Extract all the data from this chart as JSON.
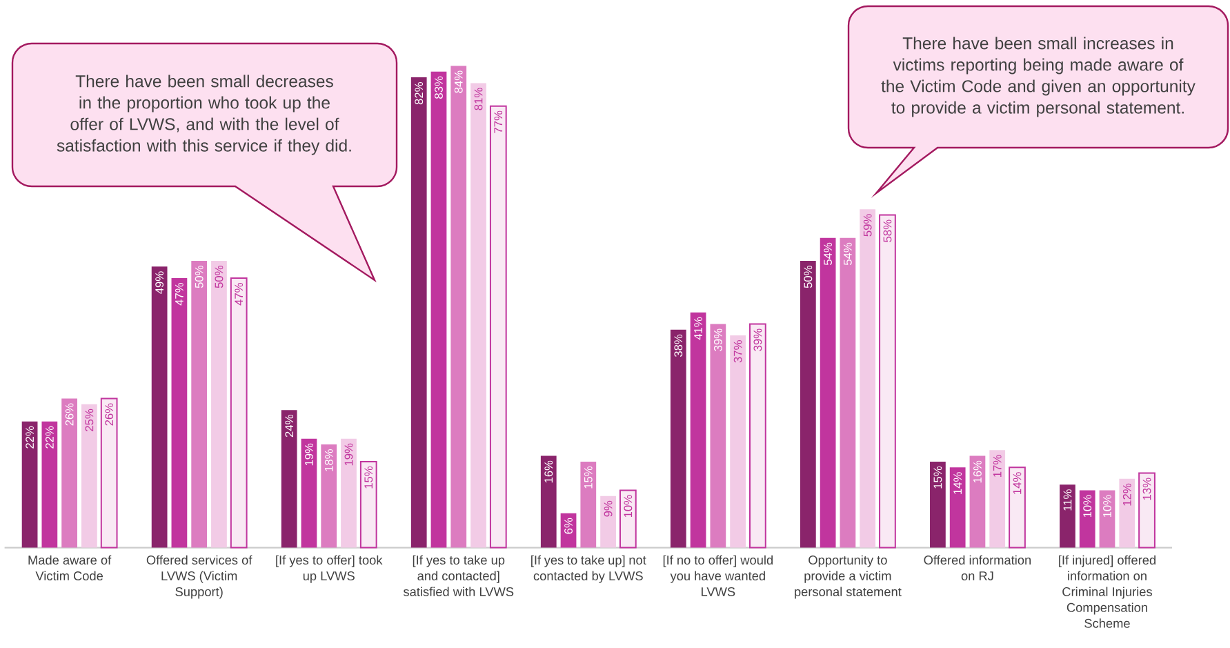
{
  "chart_data": {
    "type": "bar",
    "categories": [
      "Made aware of Victim Code",
      "Offered services of LVWS (Victim Support)",
      "[If yes to offer] took up LVWS",
      "[If yes to take up and contacted] satisfied with LVWS",
      "[If yes to take up] not contacted by LVWS",
      "[If no to offer] would you have wanted LVWS",
      "Opportunity to provide a victim personal statement",
      "Offered information on RJ",
      "[If injured] offered information on Criminal Injuries Compensation Scheme"
    ],
    "series": [
      {
        "color": "#8a246b",
        "values": [
          22,
          49,
          24,
          82,
          16,
          38,
          50,
          15,
          11
        ],
        "value_labels": [
          "22%",
          "49%",
          "24%",
          "82%",
          "16%",
          "38%",
          "50%",
          "15%",
          "11%"
        ]
      },
      {
        "color": "#c1359e",
        "values": [
          22,
          47,
          19,
          83,
          6,
          41,
          54,
          14,
          10
        ],
        "value_labels": [
          "22%",
          "47%",
          "19%",
          "83%",
          "6%",
          "41%",
          "54%",
          "14%",
          "10%"
        ]
      },
      {
        "color": "#dc7cc0",
        "values": [
          26,
          50,
          18,
          84,
          15,
          39,
          54,
          16,
          10
        ],
        "value_labels": [
          "26%",
          "50%",
          "18%",
          "84%",
          "15%",
          "39%",
          "54%",
          "16%",
          "10%"
        ]
      },
      {
        "color": "#f2cbe6",
        "values": [
          25,
          50,
          19,
          81,
          9,
          37,
          59,
          17,
          12
        ],
        "value_labels": [
          "25%",
          "50%",
          "19%",
          "81%",
          "9%",
          "37%",
          "59%",
          "17%",
          "12%"
        ]
      },
      {
        "color": "#f9e9f4",
        "values": [
          26,
          47,
          15,
          77,
          10,
          39,
          58,
          14,
          13
        ],
        "value_labels": [
          "26%",
          "47%",
          "15%",
          "77%",
          "10%",
          "39%",
          "58%",
          "14%",
          "13%"
        ]
      }
    ],
    "tick_labels": "x",
    "annotations": [
      "There have been small decreases in the proportion who took up the offer of LVWS, and with the level of satisfaction with this service if they did.",
      "There have been small increases in victims reporting being made aware of the Victim Code and given an opportunity to provide a victim personal statement."
    ]
  }
}
